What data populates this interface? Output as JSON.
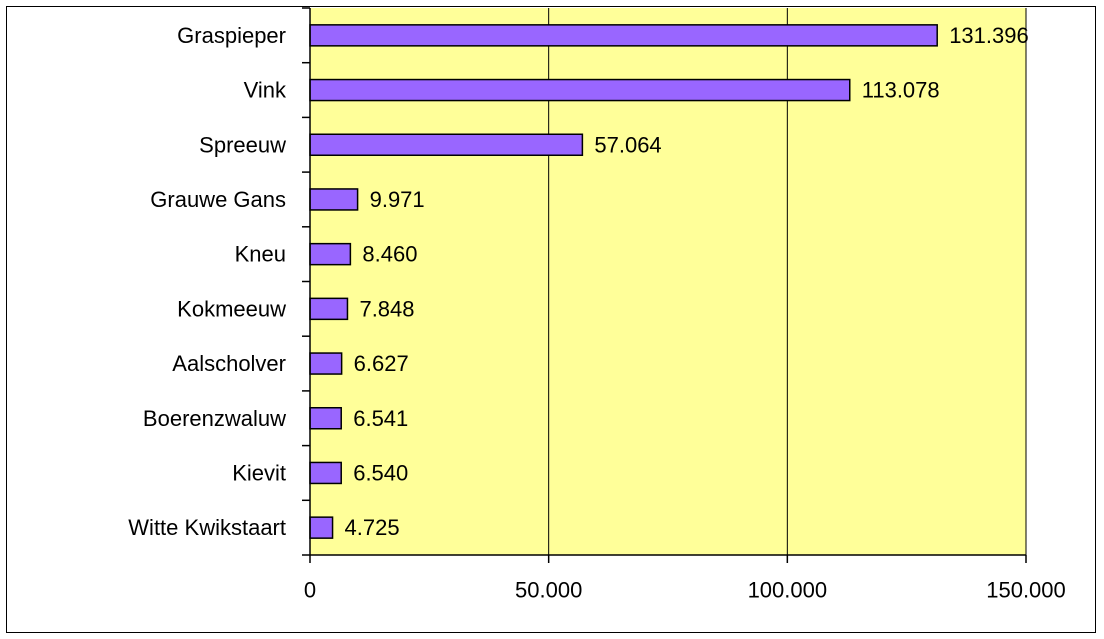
{
  "chart_data": {
    "type": "bar",
    "orientation": "horizontal",
    "categories": [
      "Graspieper",
      "Vink",
      "Spreeuw",
      "Grauwe Gans",
      "Kneu",
      "Kokmeeuw",
      "Aalscholver",
      "Boerenzwaluw",
      "Kievit",
      "Witte Kwikstaart"
    ],
    "values": [
      131396,
      113078,
      57064,
      9971,
      8460,
      7848,
      6627,
      6541,
      6540,
      4725
    ],
    "data_labels": [
      "131.396",
      "113.078",
      "57.064",
      "9.971",
      "8.460",
      "7.848",
      "6.627",
      "6.541",
      "6.540",
      "4.725"
    ],
    "xlim": [
      0,
      150000
    ],
    "x_ticks": [
      0,
      50000,
      100000,
      150000
    ],
    "x_tick_labels": [
      "0",
      "50.000",
      "100.000",
      "150.000"
    ],
    "title": "",
    "xlabel": "",
    "ylabel": "",
    "grid": "vertical major gridlines",
    "legend": "none",
    "colors": {
      "plot_background": "#FFFF99",
      "bar_fill": "#9966FF",
      "bar_stroke": "#000000",
      "gridline": "#000000"
    }
  }
}
